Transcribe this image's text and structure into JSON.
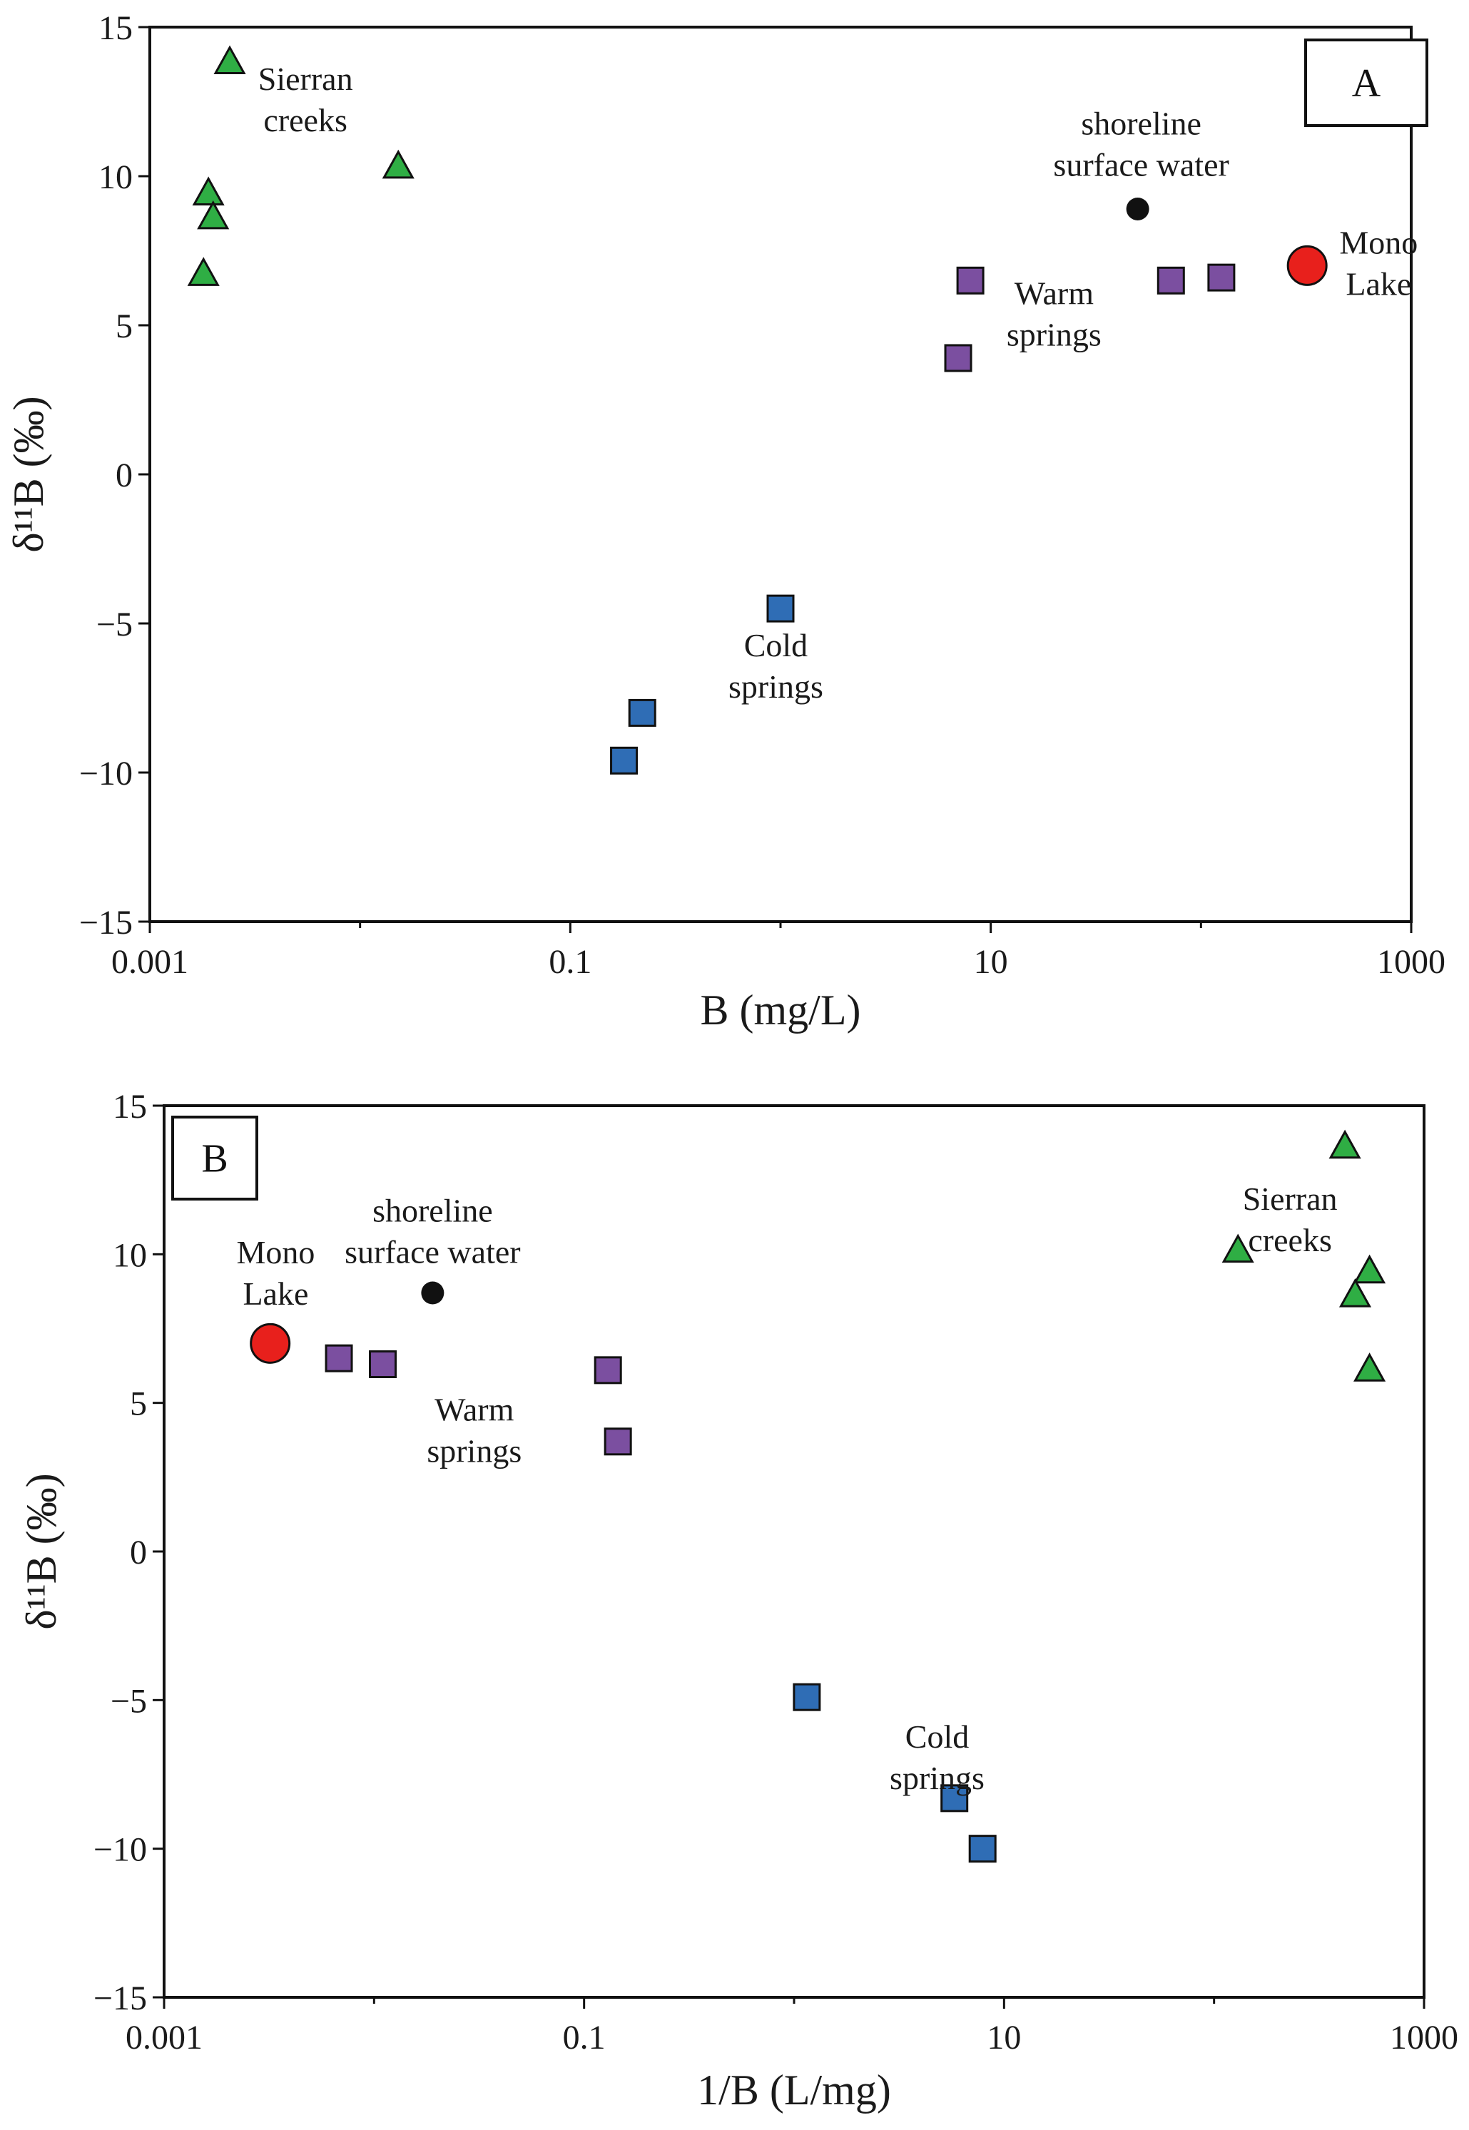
{
  "chart_data": [
    {
      "panel": "A",
      "type": "scatter",
      "xscale": "log",
      "xlim": [
        0.001,
        1000
      ],
      "ylim": [
        -15,
        15
      ],
      "xticks": [
        0.001,
        0.1,
        10,
        1000
      ],
      "xtick_labels": [
        "0.001",
        "0.1",
        "10",
        "1000"
      ],
      "yticks": [
        15,
        10,
        5,
        0,
        -5,
        -10,
        -15
      ],
      "ytick_labels": [
        "15",
        "10",
        "5",
        "0",
        "−5",
        "−10",
        "−15"
      ],
      "xlabel": "B (mg/L)",
      "ylabel": "δ¹¹B (‰)",
      "series": [
        {
          "name": "Sierran creeks",
          "marker": "triangle",
          "color": "#2fae44",
          "points": [
            [
              0.0024,
              13.8
            ],
            [
              0.0152,
              10.3
            ],
            [
              0.0019,
              9.4
            ],
            [
              0.002,
              8.6
            ],
            [
              0.0018,
              6.7
            ]
          ]
        },
        {
          "name": "shoreline surface water",
          "marker": "circle",
          "color": "#111111",
          "points": [
            [
              50,
              8.9
            ]
          ]
        },
        {
          "name": "Mono Lake",
          "marker": "circle-large",
          "color": "#e8201c",
          "points": [
            [
              320,
              7.0
            ]
          ]
        },
        {
          "name": "Warm springs",
          "marker": "square",
          "color": "#7b4fa0",
          "points": [
            [
              8,
              6.5
            ],
            [
              7,
              3.9
            ],
            [
              72,
              6.5
            ],
            [
              125,
              6.6
            ]
          ]
        },
        {
          "name": "Cold springs",
          "marker": "square",
          "color": "#2f6db5",
          "points": [
            [
              1.0,
              -4.5
            ],
            [
              0.22,
              -8.0
            ],
            [
              0.18,
              -9.6
            ]
          ]
        }
      ],
      "annotations": [
        {
          "lines": [
            "Sierran",
            "creeks"
          ],
          "at": [
            0.0055,
            12.9
          ]
        },
        {
          "lines": [
            "shoreline",
            "surface water"
          ],
          "at": [
            52,
            11.4
          ]
        },
        {
          "lines": [
            "Mono",
            "Lake"
          ],
          "at": [
            700,
            7.4
          ]
        },
        {
          "lines": [
            "Warm",
            "springs"
          ],
          "at": [
            20,
            5.7
          ]
        },
        {
          "lines": [
            "Cold",
            "springs"
          ],
          "at": [
            0.95,
            -6.1
          ]
        }
      ]
    },
    {
      "panel": "B",
      "type": "scatter",
      "xscale": "log",
      "xlim": [
        0.001,
        1000
      ],
      "ylim": [
        -15,
        15
      ],
      "xticks": [
        0.001,
        0.1,
        10,
        1000
      ],
      "xtick_labels": [
        "0.001",
        "0.1",
        "10",
        "1000"
      ],
      "yticks": [
        15,
        10,
        5,
        0,
        -5,
        -10,
        -15
      ],
      "ytick_labels": [
        "15",
        "10",
        "5",
        "0",
        "−5",
        "−10",
        "−15"
      ],
      "xlabel": "1/B (L/mg)",
      "ylabel": "δ¹¹B (‰)",
      "series": [
        {
          "name": "Sierran creeks",
          "marker": "triangle",
          "color": "#2fae44",
          "points": [
            [
              420,
              13.6
            ],
            [
              130,
              10.1
            ],
            [
              550,
              9.4
            ],
            [
              470,
              8.6
            ],
            [
              550,
              6.1
            ]
          ]
        },
        {
          "name": "shoreline surface water",
          "marker": "circle",
          "color": "#111111",
          "points": [
            [
              0.019,
              8.7
            ]
          ]
        },
        {
          "name": "Mono Lake",
          "marker": "circle-large",
          "color": "#e8201c",
          "points": [
            [
              0.0032,
              7.0
            ]
          ]
        },
        {
          "name": "Warm springs",
          "marker": "square",
          "color": "#7b4fa0",
          "points": [
            [
              0.0068,
              6.5
            ],
            [
              0.011,
              6.3
            ],
            [
              0.13,
              6.1
            ],
            [
              0.145,
              3.7
            ]
          ]
        },
        {
          "name": "Cold springs",
          "marker": "square",
          "color": "#2f6db5",
          "points": [
            [
              1.15,
              -4.9
            ],
            [
              5.8,
              -8.3
            ],
            [
              7.9,
              -10.0
            ]
          ]
        }
      ],
      "annotations": [
        {
          "lines": [
            "Sierran",
            "creeks"
          ],
          "at": [
            230,
            11.5
          ]
        },
        {
          "lines": [
            "shoreline",
            "surface water"
          ],
          "at": [
            0.019,
            11.1
          ]
        },
        {
          "lines": [
            "Mono",
            "Lake"
          ],
          "at": [
            0.0034,
            9.7
          ]
        },
        {
          "lines": [
            "Warm",
            "springs"
          ],
          "at": [
            0.03,
            4.4
          ]
        },
        {
          "lines": [
            "Cold",
            "springs"
          ],
          "at": [
            4.8,
            -6.6
          ]
        }
      ]
    }
  ]
}
